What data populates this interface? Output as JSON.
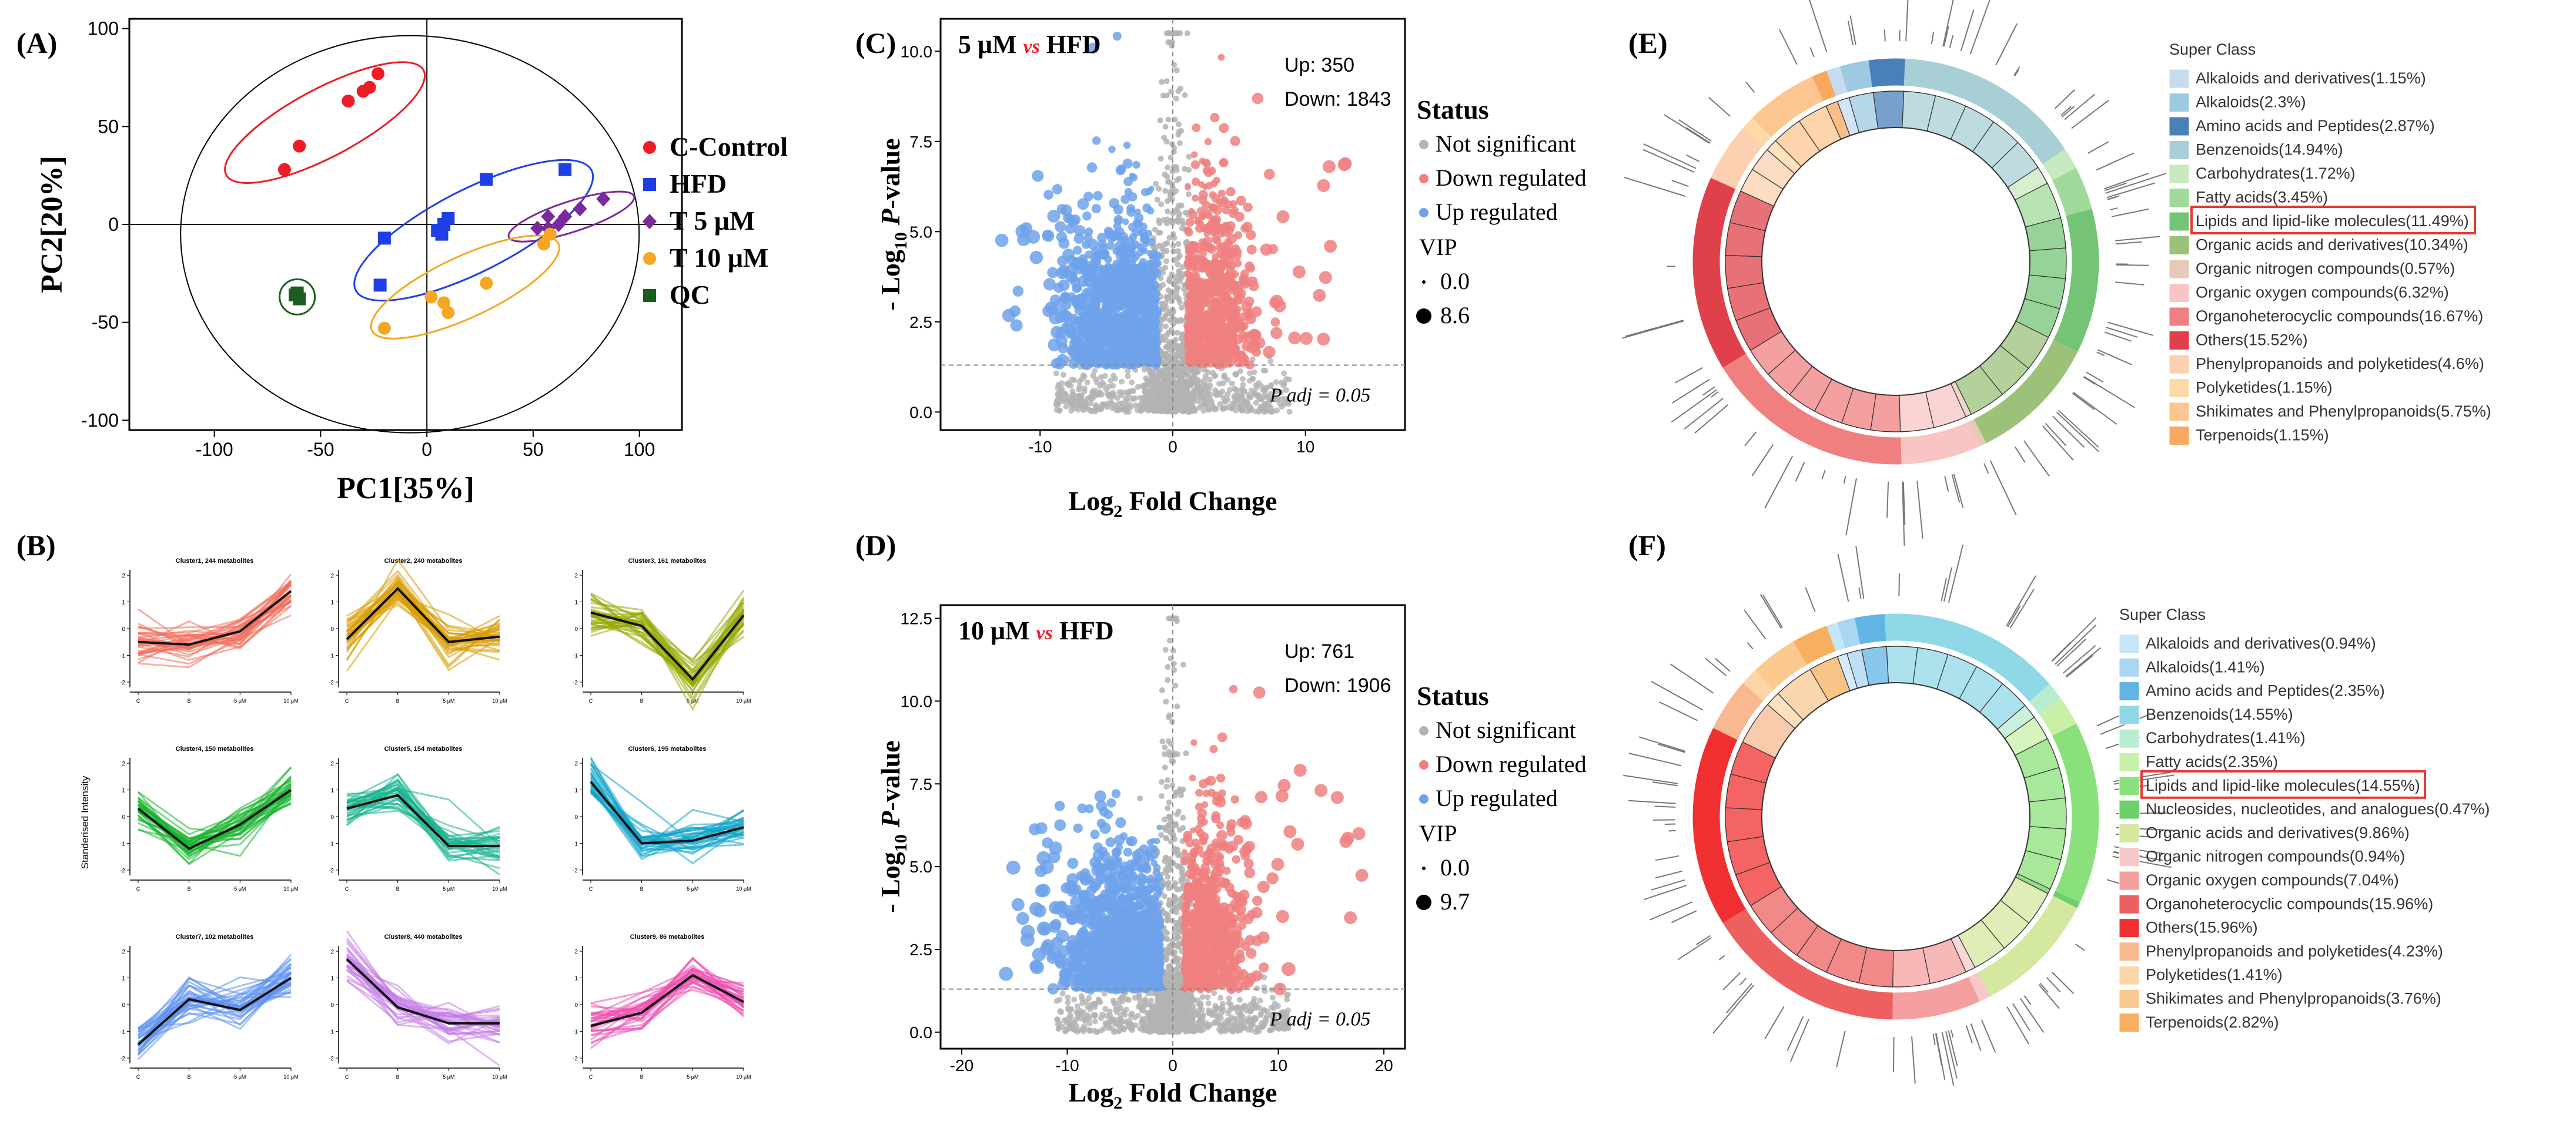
{
  "panel_labels": {
    "A": "(A)",
    "B": "(B)",
    "C": "(C)",
    "D": "(D)",
    "E": "(E)",
    "F": "(F)"
  },
  "colors": {
    "ccontrol": "#ee1c25",
    "hfd": "#1f3fe6",
    "t5": "#7a2a9c",
    "t10": "#f5a623",
    "qc": "#1b5e20",
    "gray": "#b3b3b3",
    "down": "#f08080",
    "up": "#6fa2ea",
    "red_note": "#e8202a",
    "box": "#e53935"
  },
  "chart_data": [
    {
      "id": "A",
      "type": "scatter",
      "xlabel": "PC1[35%]",
      "ylabel": "PC2[20%]",
      "xlim": [
        -140,
        120
      ],
      "ylim": [
        -105,
        105
      ],
      "xticks": [
        -100,
        -50,
        0,
        50,
        100
      ],
      "yticks": [
        -100,
        -50,
        0,
        50,
        100
      ],
      "legend": [
        "C-Control",
        "HFD",
        "T 5 μM",
        "T 10 μM",
        "QC"
      ],
      "series": [
        {
          "name": "C-Control",
          "marker": "circle",
          "x": [
            -23,
            -27,
            -37,
            -67,
            -60,
            -30
          ],
          "y": [
            77,
            70,
            63,
            28,
            40,
            68
          ]
        },
        {
          "name": "HFD",
          "marker": "square",
          "x": [
            -20,
            28,
            10,
            5,
            7,
            65,
            -22,
            8
          ],
          "y": [
            -7,
            23,
            3,
            -3,
            -5,
            28,
            -31,
            0
          ]
        },
        {
          "name": "T 5 μM",
          "marker": "diamond",
          "x": [
            52,
            57,
            62,
            57,
            65,
            72,
            83
          ],
          "y": [
            -2,
            -2,
            0,
            4,
            4,
            8,
            13
          ]
        },
        {
          "name": "T 10 μM",
          "marker": "circle",
          "x": [
            -20,
            2,
            8,
            10,
            28,
            55,
            58
          ],
          "y": [
            -53,
            -37,
            -40,
            -45,
            -30,
            -10,
            -5
          ]
        },
        {
          "name": "QC",
          "marker": "square",
          "x": [
            -62,
            -60,
            -61
          ],
          "y": [
            -36,
            -38,
            -35
          ]
        }
      ]
    },
    {
      "id": "B",
      "type": "line",
      "ylabel": "Standerised Intensity",
      "xticks": [
        "C",
        "B",
        "5 μM",
        "10 μM"
      ],
      "yticks": [
        -2,
        -1,
        0,
        1,
        2
      ],
      "clusters": [
        {
          "title": "Cluster1, 244 metabolites",
          "color": "#f26d5b",
          "mean": [
            -0.5,
            -0.6,
            -0.1,
            1.4
          ]
        },
        {
          "title": "Cluster2, 240 metabolites",
          "color": "#d89a00",
          "mean": [
            -0.4,
            1.5,
            -0.5,
            -0.3
          ]
        },
        {
          "title": "Cluster3, 161 metabolites",
          "color": "#95a800",
          "mean": [
            0.6,
            0.1,
            -1.9,
            0.5
          ]
        },
        {
          "title": "Cluster4, 150 metabolites",
          "color": "#15b22b",
          "mean": [
            0.3,
            -1.2,
            -0.3,
            1.0
          ]
        },
        {
          "title": "Cluster5, 154 metabolites",
          "color": "#17b28f",
          "mean": [
            0.3,
            0.8,
            -1.1,
            -1.1
          ]
        },
        {
          "title": "Cluster6, 195 metabolites",
          "color": "#0fa4c9",
          "mean": [
            1.3,
            -1.0,
            -0.9,
            -0.4
          ]
        },
        {
          "title": "Cluster7, 102 metabolites",
          "color": "#5b8ff0",
          "mean": [
            -1.5,
            0.2,
            -0.2,
            1.0
          ]
        },
        {
          "title": "Cluster8, 440 metabolites",
          "color": "#c57be8",
          "mean": [
            1.7,
            -0.1,
            -0.7,
            -0.7
          ]
        },
        {
          "title": "Cluster9, 86 metabolites",
          "color": "#ef4fb0",
          "mean": [
            -0.8,
            -0.3,
            1.1,
            0.1
          ]
        }
      ]
    },
    {
      "id": "C",
      "type": "scatter",
      "title_left": "5 μM",
      "title_vs": "vs",
      "title_right": "HFD",
      "up_text": "Up: 350",
      "down_text": "Down: 1843",
      "xlabel": "Log2 Fold Change",
      "ylabel": "- Log10 P-value",
      "xlim": [
        -17.5,
        17.5
      ],
      "ylim": [
        -0.5,
        10.9
      ],
      "xticks": [
        -10,
        0,
        10
      ],
      "yticks": [
        0.0,
        2.5,
        5.0,
        7.5,
        10.0
      ],
      "threshold_y": 1.3,
      "padj_label": "P adj = 0.05",
      "legend_title": "Status",
      "legend_items": [
        "Not significant",
        "Down regulated",
        "Up regulated"
      ],
      "vip_title": "VIP",
      "vip_min": "0.0",
      "vip_max": "8.6",
      "seed": 7,
      "spread": 16
    },
    {
      "id": "D",
      "type": "scatter",
      "title_left": "10 μM",
      "title_vs": "vs",
      "title_right": "HFD",
      "up_text": "Up: 761",
      "down_text": "Down: 1906",
      "xlabel": "Log2 Fold Change",
      "ylabel": "- Log10 P-value",
      "xlim": [
        -22,
        22
      ],
      "ylim": [
        -0.5,
        12.9
      ],
      "xticks": [
        -20,
        -10,
        0,
        10,
        20
      ],
      "yticks": [
        0.0,
        2.5,
        5.0,
        7.5,
        10.0,
        12.5
      ],
      "threshold_y": 1.3,
      "padj_label": "P adj = 0.05",
      "legend_title": "Status",
      "legend_items": [
        "Not significant",
        "Down regulated",
        "Up regulated"
      ],
      "vip_title": "VIP",
      "vip_min": "0.0",
      "vip_max": "9.7",
      "seed": 13,
      "spread": 20
    },
    {
      "id": "E",
      "type": "pie",
      "legend_title": "Super Class",
      "highlight": "Lipids and lipid-like molecules(11.49%)",
      "labels": [
        "Alkaloids and derivatives(1.15%)",
        "Alkaloids(2.3%)",
        "Amino acids and Peptides(2.87%)",
        "Benzenoids(14.94%)",
        "Carbohydrates(1.72%)",
        "Fatty acids(3.45%)",
        "Lipids and lipid-like molecules(11.49%)",
        "Organic acids and derivatives(10.34%)",
        "Organic nitrogen compounds(0.57%)",
        "Organic oxygen compounds(6.32%)",
        "Organoheterocyclic compounds(16.67%)",
        "Others(15.52%)",
        "Phenylpropanoids and polyketides(4.6%)",
        "Polyketides(1.15%)",
        "Shikimates and Phenylpropanoids(5.75%)",
        "Terpenoids(1.15%)"
      ],
      "values": [
        1.15,
        2.3,
        2.87,
        14.94,
        1.72,
        3.45,
        11.49,
        10.34,
        0.57,
        6.32,
        16.67,
        15.52,
        4.6,
        1.15,
        5.75,
        1.15
      ],
      "colors": [
        "#c6dbef",
        "#9ecae1",
        "#4a80b8",
        "#a8cfd6",
        "#c7e9c0",
        "#a1d99b",
        "#74c476",
        "#9cc27a",
        "#e6c9b8",
        "#f8c4c4",
        "#f08080",
        "#e0404a",
        "#fcd0b0",
        "#fdd9a8",
        "#fdc590",
        "#f9a860"
      ]
    },
    {
      "id": "F",
      "type": "pie",
      "legend_title": "Super Class",
      "highlight": "Lipids and lipid-like molecules(14.55%)",
      "labels": [
        "Alkaloids and derivatives(0.94%)",
        "Alkaloids(1.41%)",
        "Amino acids and Peptides(2.35%)",
        "Benzenoids(14.55%)",
        "Carbohydrates(1.41%)",
        "Fatty acids(2.35%)",
        "Lipids and lipid-like molecules(14.55%)",
        "Nucleosides, nucleotides, and analogues(0.47%)",
        "Organic acids and derivatives(9.86%)",
        "Organic nitrogen compounds(0.94%)",
        "Organic oxygen compounds(7.04%)",
        "Organoheterocyclic compounds(15.96%)",
        "Others(15.96%)",
        "Phenylpropanoids and polyketides(4.23%)",
        "Polyketides(1.41%)",
        "Shikimates and Phenylpropanoids(3.76%)",
        "Terpenoids(2.82%)"
      ],
      "values": [
        0.94,
        1.41,
        2.35,
        14.55,
        1.41,
        2.35,
        14.55,
        0.47,
        9.86,
        0.94,
        7.04,
        15.96,
        15.96,
        4.23,
        1.41,
        3.76,
        2.82
      ],
      "colors": [
        "#c6e6f7",
        "#a9d6f0",
        "#62b4e4",
        "#8fd8e8",
        "#b7ecd0",
        "#c9f0a8",
        "#8ae07a",
        "#6ccf6a",
        "#d4e8a0",
        "#f8c8c8",
        "#f5a0a0",
        "#ee6060",
        "#f03030",
        "#f8b890",
        "#fcd5a8",
        "#fbc890",
        "#f7b060"
      ]
    }
  ]
}
